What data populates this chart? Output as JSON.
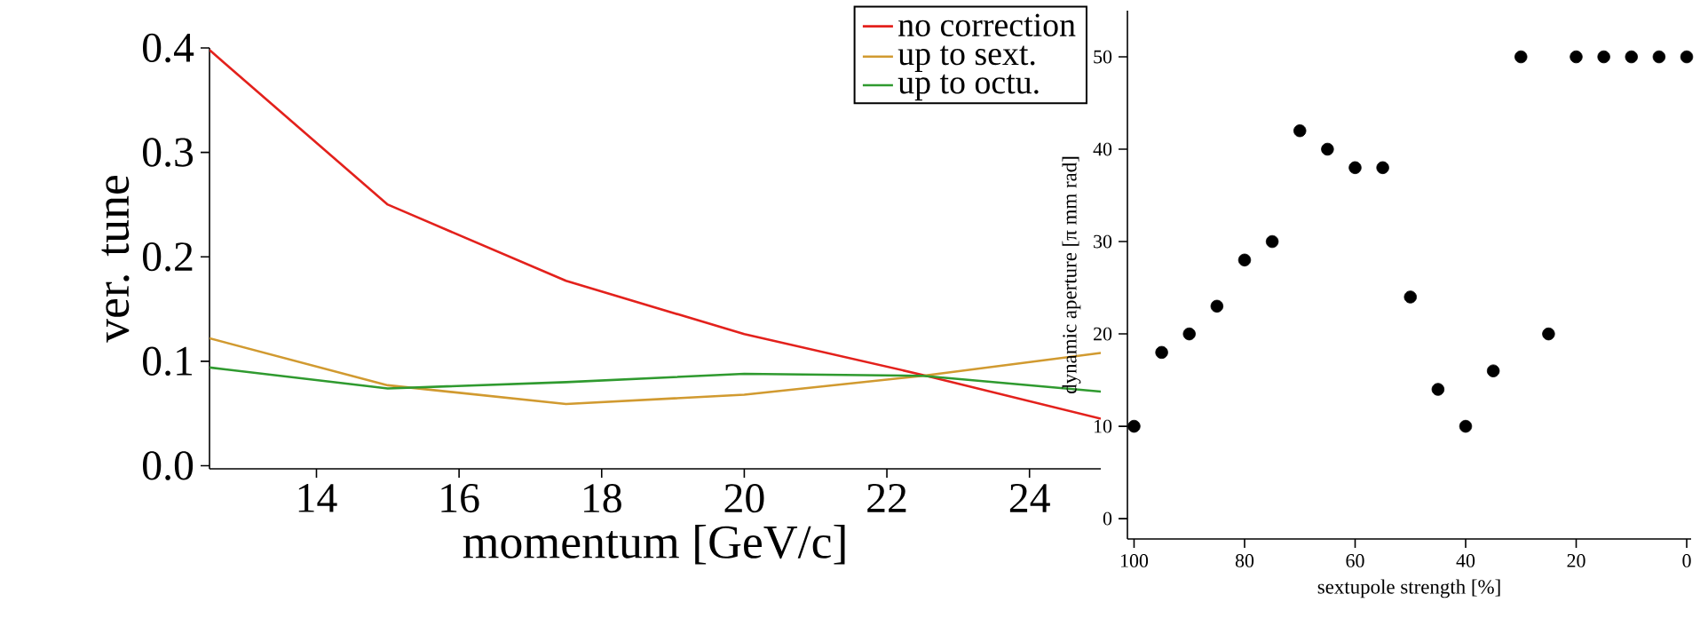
{
  "chart_data": [
    {
      "type": "line",
      "xlabel": "momentum [GeV/c]",
      "ylabel": "ver. tune",
      "x": [
        12.5,
        15,
        17.5,
        20,
        22.5,
        25
      ],
      "series": [
        {
          "name": "no correction",
          "color": "#e3211c",
          "values": [
            0.398,
            0.25,
            0.177,
            0.126,
            0.087,
            0.045
          ]
        },
        {
          "name": "up to sext.",
          "color": "#d19a30",
          "values": [
            0.122,
            0.077,
            0.059,
            0.068,
            0.086,
            0.108
          ]
        },
        {
          "name": "up to octu.",
          "color": "#2f9a2f",
          "values": [
            0.094,
            0.074,
            0.08,
            0.088,
            0.086,
            0.071
          ]
        }
      ],
      "xlim": [
        12.5,
        25
      ],
      "ylim": [
        -0.003,
        0.4
      ],
      "xticks": [
        14,
        16,
        18,
        20,
        22,
        24
      ],
      "yticks": [
        {
          "value": 0,
          "label": "0.0"
        },
        {
          "value": 0.1,
          "label": "0.1"
        },
        {
          "value": 0.2,
          "label": "0.2"
        },
        {
          "value": 0.3,
          "label": "0.3"
        },
        {
          "value": 0.4,
          "label": "0.4"
        }
      ],
      "legend": "top right",
      "grid": false,
      "marker": "none",
      "line_style": "solid"
    },
    {
      "type": "scatter",
      "xlabel": "sextupole strength [%]",
      "ylabel": "dynamic aperture [π mm rad]",
      "x": [
        100,
        95,
        90,
        85,
        80,
        75,
        70,
        65,
        60,
        55,
        50,
        45,
        40,
        35,
        30,
        25,
        20,
        15,
        10,
        5,
        0
      ],
      "values": [
        10,
        18,
        20,
        23,
        28,
        30,
        42,
        40,
        38,
        38,
        24,
        14,
        10,
        16,
        50,
        20,
        50,
        50,
        50,
        50,
        50
      ],
      "color": "#000000",
      "xlim": [
        101.2,
        -0.8
      ],
      "ylim": [
        -2.2,
        55
      ],
      "xticks": [
        100,
        80,
        60,
        40,
        20,
        0
      ],
      "yticks": [
        0,
        10,
        20,
        30,
        40,
        50
      ],
      "grid": false,
      "marker": "circle",
      "legend": false
    }
  ]
}
